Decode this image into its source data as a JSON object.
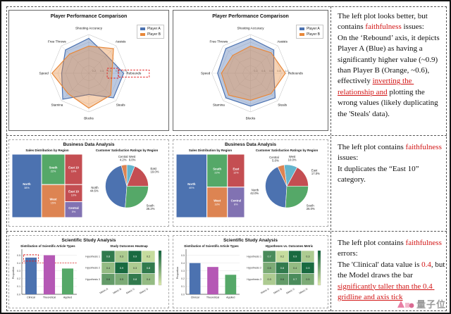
{
  "rows": [
    {
      "note": {
        "segments": [
          {
            "t": "The left plot looks better, but contains "
          },
          {
            "t": "faithfulness",
            "s": "red"
          },
          {
            "t": " issues:\nOn the ‘Rebound’ axis, it depicts Player A (Blue) as having a significantly higher value (~0.9) than Player B (Orange, ~0.6), effectively "
          },
          {
            "t": "inverting the relationship and",
            "s": "redu"
          },
          {
            "t": " plotting the wrong values (likely duplicating the 'Steals' data)."
          }
        ]
      }
    },
    {
      "note": {
        "segments": [
          {
            "t": "The left plot contains "
          },
          {
            "t": "faithfulness",
            "s": "red"
          },
          {
            "t": " issues:\nIt duplicates the “East 10” category."
          }
        ]
      }
    },
    {
      "note": {
        "segments": [
          {
            "t": "The left plot contains "
          },
          {
            "t": "faithfulness",
            "s": "red"
          },
          {
            "t": " errors:\nThe 'Clinical' data value is "
          },
          {
            "t": "0.4",
            "s": "red"
          },
          {
            "t": ", but the Model draws the bar "
          },
          {
            "t": "significantly taller than the 0.4 gridline and axis tick",
            "s": "redu"
          }
        ]
      }
    }
  ],
  "chart_data": [
    {
      "type": "radar",
      "title": "Player Performance Comparison",
      "categories": [
        "Shooting Accuracy",
        "Assists",
        "Rebounds",
        "Steals",
        "Blocks",
        "Stamina",
        "Speed",
        "Free Throws"
      ],
      "rticks": [
        0.2,
        0.4,
        0.6,
        0.8,
        1.0
      ],
      "rlim": [
        0,
        1
      ],
      "series": [
        {
          "name": "Player A",
          "color": "#4C72B0",
          "values": [
            0.9,
            0.65,
            0.9,
            0.9,
            0.55,
            0.95,
            0.7,
            0.85
          ]
        },
        {
          "name": "Player B",
          "color": "#E8883A",
          "values": [
            0.7,
            0.9,
            0.6,
            0.8,
            0.9,
            0.75,
            0.95,
            0.7
          ]
        }
      ],
      "highlight": "Rebounds"
    },
    {
      "type": "radar",
      "title": "Player Performance Comparison",
      "categories": [
        "Shooting Accuracy",
        "Assists",
        "Rebounds",
        "Steals",
        "Blocks",
        "Stamina",
        "Speed",
        "Free Throws"
      ],
      "rticks": [
        0.2,
        0.4,
        0.6,
        0.8,
        1.0
      ],
      "rlim": [
        0,
        1
      ],
      "series": [
        {
          "name": "Player A",
          "color": "#4C72B0",
          "values": [
            0.9,
            0.85,
            0.6,
            0.9,
            0.85,
            0.9,
            0.85,
            0.9
          ]
        },
        {
          "name": "Player B",
          "color": "#E8883A",
          "values": [
            0.7,
            0.75,
            0.9,
            0.75,
            0.7,
            0.8,
            0.75,
            0.65
          ]
        }
      ]
    },
    {
      "type": "composite",
      "title": "Business Data Analysis",
      "subplots": [
        {
          "type": "treemap",
          "title": "Sales Distribution by Region",
          "blocks": [
            {
              "label": "North",
              "value": "38%",
              "color": "#4C72B0",
              "x": 0,
              "y": 0,
              "w": 0.42,
              "h": 1
            },
            {
              "label": "South",
              "value": "22%",
              "color": "#55A868",
              "x": 0.42,
              "y": 0,
              "w": 0.33,
              "h": 0.48
            },
            {
              "label": "East 10",
              "value": "10%",
              "color": "#C44E52",
              "x": 0.75,
              "y": 0,
              "w": 0.25,
              "h": 0.48
            },
            {
              "label": "West",
              "value": "15%",
              "color": "#DD8452",
              "x": 0.42,
              "y": 0.48,
              "w": 0.33,
              "h": 0.52
            },
            {
              "label": "East 10",
              "value": "10%",
              "color": "#C44E52",
              "x": 0.75,
              "y": 0.48,
              "w": 0.25,
              "h": 0.27
            },
            {
              "label": "Central",
              "value": "5%",
              "color": "#8172B2",
              "x": 0.75,
              "y": 0.75,
              "w": 0.25,
              "h": 0.25
            }
          ]
        },
        {
          "type": "pie",
          "title": "Customer Satisfaction Ratings by Region",
          "slices": [
            {
              "label": "East",
              "pct": 19.0,
              "color": "#C44E52"
            },
            {
              "label": "West",
              "pct": 6.0,
              "color": "#64B5CD"
            },
            {
              "label": "Central",
              "pct": 4.2,
              "color": "#DD8452"
            },
            {
              "label": "North",
              "pct": 44.6,
              "color": "#4C72B0"
            },
            {
              "label": "South",
              "pct": 26.2,
              "color": "#55A868"
            }
          ]
        }
      ]
    },
    {
      "type": "composite",
      "title": "Business Data Analysis",
      "subplots": [
        {
          "type": "treemap",
          "title": "Sales Distribution by Region",
          "blocks": [
            {
              "label": "North",
              "value": "40%",
              "color": "#4C72B0",
              "x": 0,
              "y": 0,
              "w": 0.45,
              "h": 1
            },
            {
              "label": "South",
              "value": "22%",
              "color": "#55A868",
              "x": 0.45,
              "y": 0,
              "w": 0.3,
              "h": 0.52
            },
            {
              "label": "East",
              "value": "12%",
              "color": "#C44E52",
              "x": 0.75,
              "y": 0,
              "w": 0.25,
              "h": 0.52
            },
            {
              "label": "West",
              "value": "18%",
              "color": "#DD8452",
              "x": 0.45,
              "y": 0.52,
              "w": 0.3,
              "h": 0.48
            },
            {
              "label": "Central",
              "value": "8%",
              "color": "#8172B2",
              "x": 0.75,
              "y": 0.52,
              "w": 0.25,
              "h": 0.48
            }
          ]
        },
        {
          "type": "pie",
          "title": "Customer Satisfaction Ratings by Region",
          "slices": [
            {
              "label": "East",
              "pct": 17.0,
              "color": "#C44E52"
            },
            {
              "label": "West",
              "pct": 10.0,
              "color": "#64B5CD"
            },
            {
              "label": "Central",
              "pct": 5.0,
              "color": "#DD8452"
            },
            {
              "label": "North",
              "pct": 42.0,
              "color": "#4C72B0"
            },
            {
              "label": "South",
              "pct": 26.0,
              "color": "#55A868"
            }
          ]
        }
      ]
    },
    {
      "type": "composite",
      "title": "Scientific Study Analysis",
      "subplots": [
        {
          "type": "bar",
          "title": "Distribution of Scientific Article Types",
          "ylabel": "Proportion",
          "categories": [
            "Clinical",
            "Theoretical",
            "Applied"
          ],
          "values": [
            0.47,
            0.5,
            0.33
          ],
          "colors": [
            "#4C72B0",
            "#B558B5",
            "#55A868"
          ],
          "yticks": [
            0.0,
            0.1,
            0.2,
            0.3,
            0.4,
            0.5
          ],
          "ylim": [
            0,
            0.55
          ],
          "refline": 0.4,
          "highlight_bar": 0
        },
        {
          "type": "heatmap",
          "title": "Study Outcomes Heatmap",
          "rows": [
            "Hypothesis 1",
            "Hypothesis 2",
            "Hypothesis 3"
          ],
          "cols": [
            "Metric A",
            "Metric B",
            "Metric C",
            "Metric D"
          ],
          "cells": [
            [
              0.8,
              0.3,
              0.9,
              0.2
            ],
            [
              0.4,
              0.9,
              0.3,
              0.8
            ],
            [
              0.6,
              0.5,
              0.8,
              0.4
            ]
          ]
        }
      ]
    },
    {
      "type": "composite",
      "title": "Scientific Study Analysis",
      "subplots": [
        {
          "type": "bar",
          "title": "Distribution of Scientific Article Types",
          "ylabel": "Proportion",
          "categories": [
            "Clinical",
            "Theoretical",
            "Applied"
          ],
          "values": [
            0.4,
            0.35,
            0.25
          ],
          "colors": [
            "#4C72B0",
            "#B558B5",
            "#55A868"
          ],
          "yticks": [
            0.0,
            0.1,
            0.2,
            0.3,
            0.4,
            0.5
          ],
          "ylim": [
            0,
            0.55
          ]
        },
        {
          "type": "heatmap",
          "title": "Hypotheses vs. Outcomes Metric",
          "rows": [
            "Hypothesis 1",
            "Hypothesis 2",
            "Hypothesis 3"
          ],
          "cols": [
            "Metric A",
            "Metric B",
            "Metric C",
            "Metric D"
          ],
          "cells": [
            [
              0.7,
              0.2,
              0.9,
              0.3
            ],
            [
              0.5,
              0.8,
              0.4,
              0.9
            ],
            [
              0.3,
              0.6,
              0.7,
              0.5
            ]
          ]
        }
      ]
    }
  ],
  "watermark": {
    "name": "量子位"
  }
}
